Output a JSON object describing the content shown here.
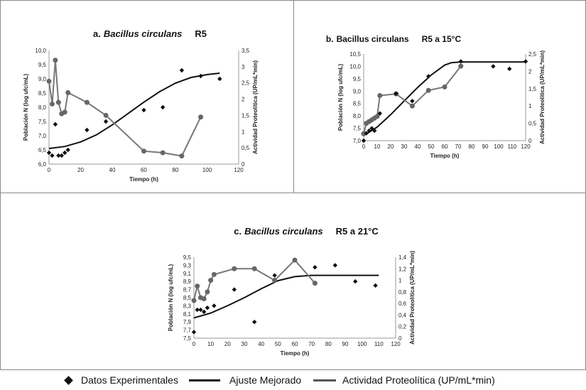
{
  "colors": {
    "fit": "#111111",
    "activity": "#777777",
    "marker": "#111111",
    "activity_marker": "#666666"
  },
  "legend": {
    "experimental": "Datos Experimentales",
    "fit": "Ajuste Mejorado",
    "activity": "Actividad Proteolítica (UP/mL*min)"
  },
  "chart_data": [
    {
      "id": "a",
      "type": "line",
      "title_prefix": "a.",
      "title_organism": "Bacillus circulans",
      "title_strain": "R5",
      "xlabel": "Tiempo (h)",
      "ylabel": "Población N (log ufc/mL)",
      "y2label": "Actividad Proteolítica (UP/mL*min)",
      "xlim": [
        0,
        120
      ],
      "ylim": [
        6.0,
        10.0
      ],
      "y2lim": [
        0,
        3.5
      ],
      "xticks": [
        "0",
        "20",
        "40",
        "60",
        "80",
        "100",
        "120"
      ],
      "yticks": [
        "6,0",
        "6,5",
        "7,0",
        "7,5",
        "8,0",
        "8,5",
        "9,0",
        "9,5",
        "10,0"
      ],
      "y2ticks": [
        "0",
        "0,5",
        "1",
        "1,5",
        "2",
        "2,5",
        "3",
        "3,5"
      ],
      "experimental": {
        "x": [
          0,
          2,
          4,
          6,
          8,
          10,
          12,
          24,
          36,
          60,
          72,
          84,
          96,
          108
        ],
        "y": [
          6.4,
          6.3,
          7.4,
          6.3,
          6.3,
          6.4,
          6.5,
          7.2,
          7.5,
          7.9,
          8.0,
          9.3,
          9.1,
          9.0
        ]
      },
      "fit": {
        "x": [
          0,
          10,
          20,
          30,
          40,
          50,
          60,
          70,
          80,
          90,
          100,
          108
        ],
        "y": [
          6.55,
          6.62,
          6.78,
          7.03,
          7.38,
          7.78,
          8.18,
          8.55,
          8.85,
          9.05,
          9.15,
          9.2
        ]
      },
      "activity": {
        "x": [
          0,
          2,
          4,
          6,
          8,
          10,
          12,
          24,
          36,
          60,
          72,
          84,
          96
        ],
        "y": [
          2.55,
          1.85,
          3.2,
          1.9,
          1.55,
          1.6,
          2.2,
          1.9,
          1.5,
          0.4,
          0.35,
          0.25,
          1.45
        ]
      },
      "grid": false
    },
    {
      "id": "b",
      "type": "line",
      "title_prefix": "b.",
      "title_organism": "Bacillus circulans",
      "title_strain": "R5 a 15°C",
      "xlabel": "Tiempo (h)",
      "ylabel": "Población N (log ufc/mL)",
      "y2label": "Actividad Proteolítica (UP/mL*min)",
      "xlim": [
        0,
        120
      ],
      "ylim": [
        7.0,
        10.5
      ],
      "y2lim": [
        0,
        2.5
      ],
      "xticks": [
        "0",
        "10",
        "20",
        "30",
        "40",
        "50",
        "60",
        "70",
        "80",
        "90",
        "100",
        "110",
        "120"
      ],
      "yticks": [
        "7,0",
        "7,5",
        "8,0",
        "8,5",
        "9,0",
        "9,5",
        "10,0",
        "10,5"
      ],
      "y2ticks": [
        "0",
        "0,5",
        "1",
        "1,5",
        "2",
        "2,5"
      ],
      "experimental": {
        "x": [
          0,
          2,
          4,
          6,
          8,
          12,
          24,
          36,
          48,
          72,
          96,
          108,
          120
        ],
        "y": [
          7.0,
          7.3,
          7.4,
          7.5,
          7.4,
          8.1,
          8.9,
          8.6,
          9.6,
          10.2,
          10.0,
          9.9,
          10.2
        ]
      },
      "fit": {
        "x": [
          0,
          10,
          20,
          30,
          40,
          50,
          60,
          65,
          72,
          80,
          90,
          100,
          110,
          120
        ],
        "y": [
          7.2,
          7.55,
          8.05,
          8.6,
          9.15,
          9.65,
          10.05,
          10.15,
          10.18,
          10.18,
          10.18,
          10.18,
          10.18,
          10.18
        ]
      },
      "activity": {
        "x": [
          0,
          2,
          4,
          6,
          8,
          10,
          12,
          24,
          36,
          48,
          60,
          72
        ],
        "y": [
          0.2,
          0.5,
          0.55,
          0.6,
          0.65,
          0.7,
          1.3,
          1.35,
          1.0,
          1.45,
          1.55,
          2.15
        ]
      },
      "grid": false
    },
    {
      "id": "c",
      "type": "line",
      "title_prefix": "c.",
      "title_organism": "Bacillus circulans",
      "title_strain": "R5 a 21°C",
      "xlabel": "Tiempo (h)",
      "ylabel": "Población N (log ufc/mL)",
      "y2label": "Actividad Proteolítica (UP/mL*min)",
      "xlim": [
        0,
        120
      ],
      "ylim": [
        7.5,
        9.5
      ],
      "y2lim": [
        0,
        1.4
      ],
      "xticks": [
        "0",
        "10",
        "20",
        "30",
        "40",
        "50",
        "60",
        "70",
        "80",
        "90",
        "100",
        "110",
        "120"
      ],
      "yticks": [
        "7,5",
        "7,7",
        "7,9",
        "8,1",
        "8,3",
        "8,5",
        "8,7",
        "8,9",
        "9,1",
        "9,3",
        "9,5"
      ],
      "y2ticks": [
        "0",
        "0,2",
        "0,4",
        "0,6",
        "0,8",
        "1",
        "1,2",
        "1,4"
      ],
      "experimental": {
        "x": [
          0,
          2,
          4,
          6,
          8,
          12,
          24,
          36,
          48,
          72,
          84,
          96,
          108
        ],
        "y": [
          7.65,
          8.2,
          8.2,
          8.15,
          8.25,
          8.3,
          8.7,
          7.9,
          9.05,
          9.25,
          9.3,
          8.9,
          8.8
        ]
      },
      "fit": {
        "x": [
          0,
          10,
          20,
          30,
          40,
          50,
          60,
          70,
          80,
          90,
          100,
          110
        ],
        "y": [
          8.0,
          8.12,
          8.3,
          8.5,
          8.72,
          8.92,
          9.02,
          9.05,
          9.05,
          9.05,
          9.05,
          9.05
        ]
      },
      "activity": {
        "x": [
          0,
          2,
          4,
          6,
          8,
          10,
          12,
          24,
          36,
          48,
          60,
          72
        ],
        "y": [
          0.65,
          0.9,
          0.7,
          0.68,
          0.8,
          1.0,
          1.1,
          1.2,
          1.2,
          1.0,
          1.35,
          0.95
        ]
      },
      "grid": false
    }
  ]
}
